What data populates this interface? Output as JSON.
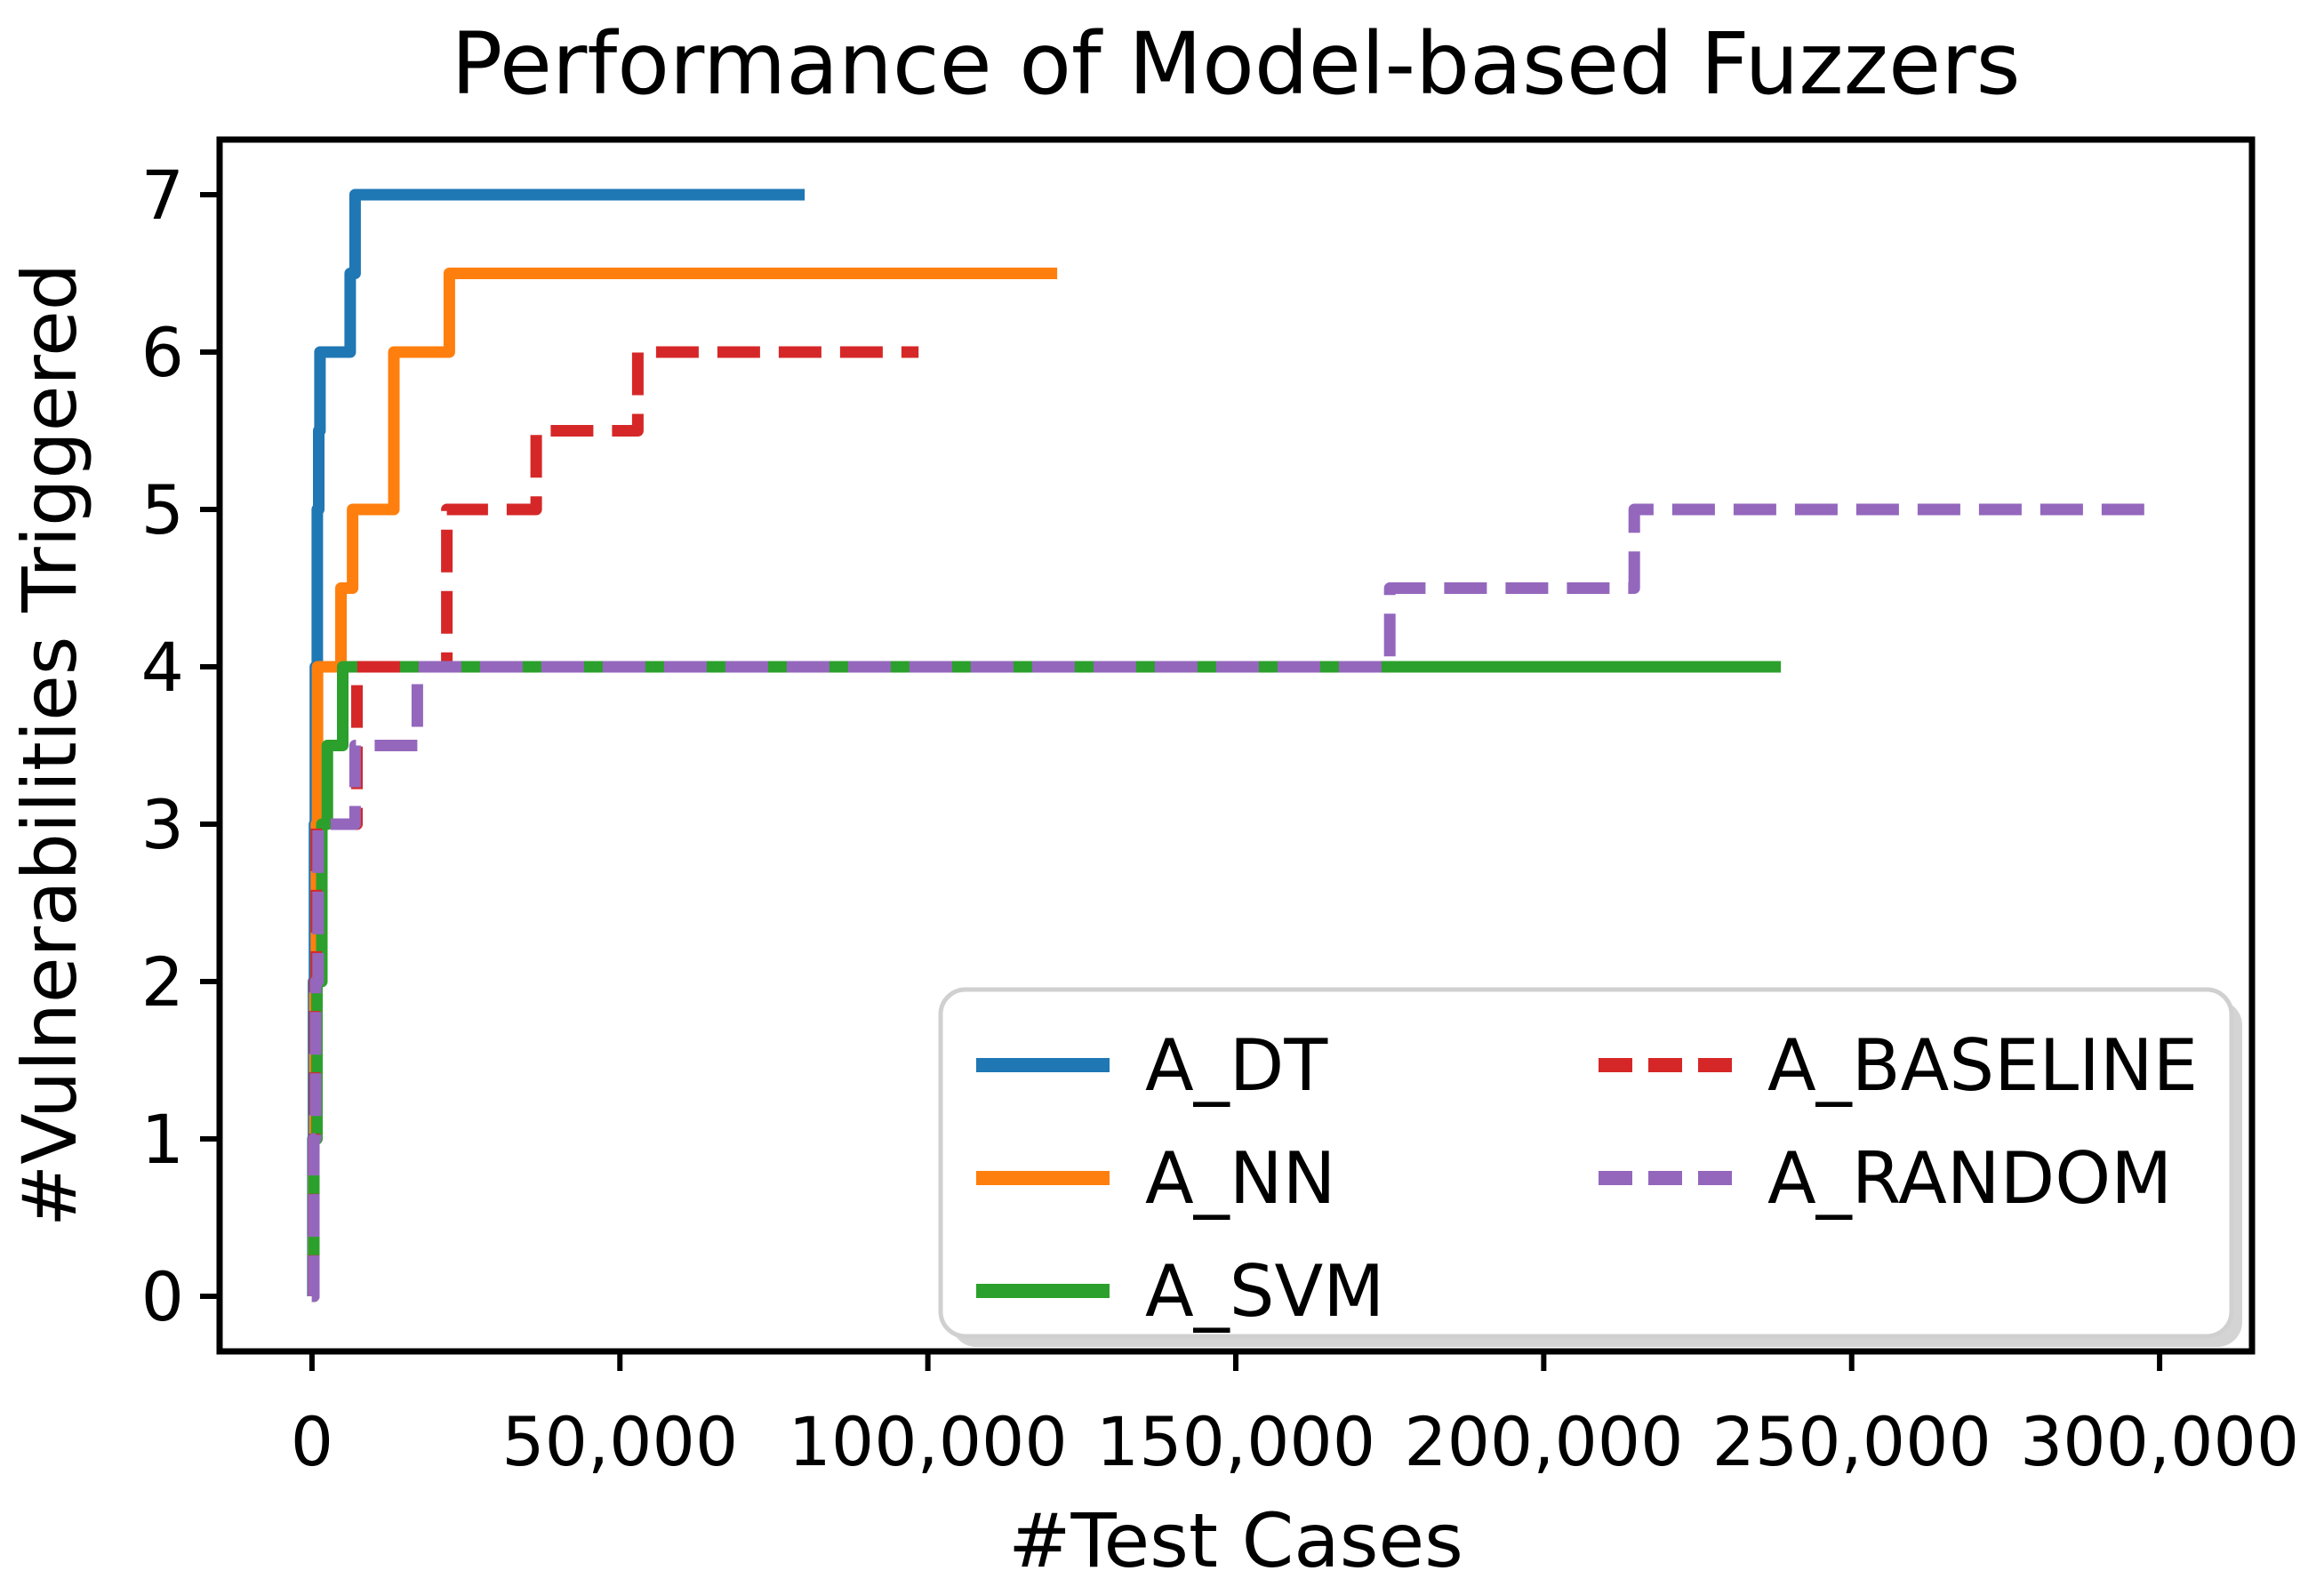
{
  "title": "Performance of Model-based Fuzzers",
  "axes": {
    "xlabel": "#Test Cases",
    "ylabel": "#Vulnerabilities Triggered",
    "spine_color": "#000000",
    "background": "#ffffff"
  },
  "legend": {
    "border_color": "#d0d0d0",
    "shadow_color": "#d4d4d4",
    "fill": "#ffffff",
    "position": "lower right",
    "columns": 2
  },
  "chart_data": {
    "type": "line",
    "step": "post",
    "title": "Performance of Model-based Fuzzers",
    "xlabel": "#Test Cases",
    "ylabel": "#Vulnerabilities Triggered",
    "xlim": [
      -15000,
      315000
    ],
    "ylim": [
      -0.35,
      7.35
    ],
    "grid": false,
    "x_ticks": [
      {
        "value": 0,
        "label": "0"
      },
      {
        "value": 50000,
        "label": "50,000"
      },
      {
        "value": 100000,
        "label": "100,000"
      },
      {
        "value": 150000,
        "label": "150,000"
      },
      {
        "value": 200000,
        "label": "200,000"
      },
      {
        "value": 250000,
        "label": "250,000"
      },
      {
        "value": 300000,
        "label": "300,000"
      }
    ],
    "y_ticks": [
      {
        "value": 0,
        "label": "0"
      },
      {
        "value": 1,
        "label": "1"
      },
      {
        "value": 2,
        "label": "2"
      },
      {
        "value": 3,
        "label": "3"
      },
      {
        "value": 4,
        "label": "4"
      },
      {
        "value": 5,
        "label": "5"
      },
      {
        "value": 6,
        "label": "6"
      },
      {
        "value": 7,
        "label": "7"
      }
    ],
    "series": [
      {
        "name": "A_DT",
        "color": "#1f77b4",
        "style": "solid",
        "points": [
          [
            0,
            0
          ],
          [
            150,
            1
          ],
          [
            250,
            2
          ],
          [
            400,
            3
          ],
          [
            550,
            4
          ],
          [
            860,
            5
          ],
          [
            1100,
            5.5
          ],
          [
            1300,
            6
          ],
          [
            6200,
            6.5
          ],
          [
            7000,
            7
          ],
          [
            80000,
            7
          ]
        ]
      },
      {
        "name": "A_NN",
        "color": "#ff7f0e",
        "style": "solid",
        "points": [
          [
            0,
            0
          ],
          [
            250,
            1
          ],
          [
            450,
            2
          ],
          [
            700,
            3
          ],
          [
            900,
            4
          ],
          [
            4700,
            4.5
          ],
          [
            6600,
            5
          ],
          [
            13300,
            6
          ],
          [
            22300,
            6.5
          ],
          [
            121000,
            6.5
          ]
        ]
      },
      {
        "name": "A_SVM",
        "color": "#2ca02c",
        "style": "solid",
        "points": [
          [
            0,
            0
          ],
          [
            300,
            1
          ],
          [
            800,
            2
          ],
          [
            1600,
            3
          ],
          [
            2500,
            3.5
          ],
          [
            5000,
            4
          ],
          [
            238500,
            4
          ]
        ]
      },
      {
        "name": "A_BASELINE",
        "color": "#d62728",
        "style": "dashed",
        "points": [
          [
            0,
            0
          ],
          [
            250,
            1
          ],
          [
            450,
            2
          ],
          [
            700,
            3
          ],
          [
            7300,
            4
          ],
          [
            21900,
            5
          ],
          [
            36400,
            5.5
          ],
          [
            52900,
            6
          ],
          [
            98500,
            6
          ]
        ]
      },
      {
        "name": "A_RANDOM",
        "color": "#9467bd",
        "style": "dashed",
        "points": [
          [
            0,
            0
          ],
          [
            300,
            1
          ],
          [
            600,
            2
          ],
          [
            1000,
            3
          ],
          [
            7000,
            3.5
          ],
          [
            17100,
            4
          ],
          [
            175000,
            4.5
          ],
          [
            214700,
            5
          ],
          [
            297500,
            5
          ]
        ]
      }
    ]
  }
}
